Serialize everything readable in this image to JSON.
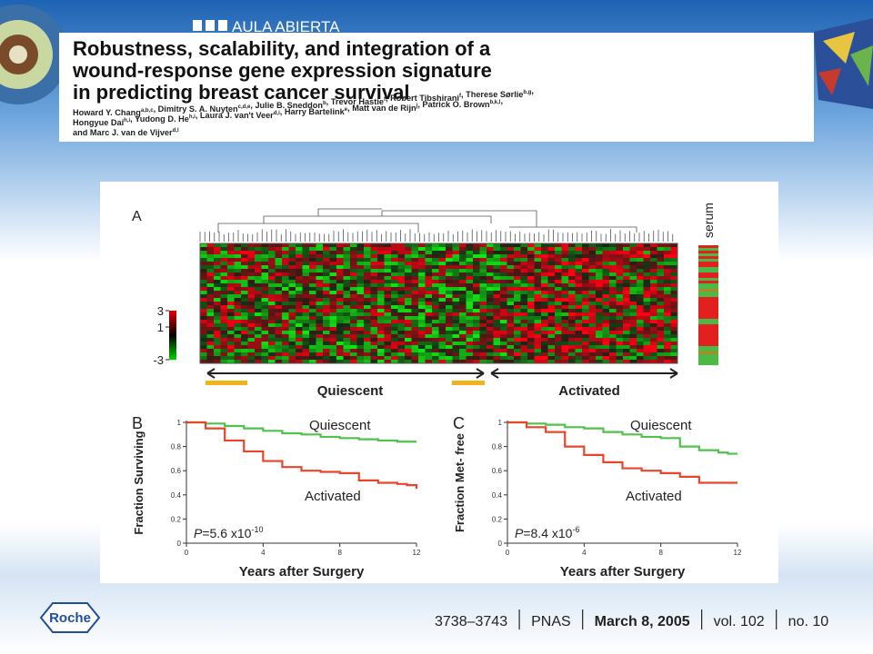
{
  "banner": {
    "text": "AULA ABIERTA",
    "logo": "Roche"
  },
  "paper": {
    "title_lines": [
      "Robustness, scalability, and integration of a",
      "wound-response gene expression signature",
      "in predicting breast cancer survival"
    ],
    "author_lines": [
      [
        {
          "name": "Howard Y. Chang",
          "sup": "a,b,c"
        },
        {
          "name": ", Dimitry S. A. Nuyten",
          "sup": "c,d,e"
        },
        {
          "name": ", Julie B. Sneddon",
          "sup": "b"
        },
        {
          "name": ", Trevor Hastie",
          "sup": "f"
        },
        {
          "name": ", Robert Tibshirani",
          "sup": "f"
        },
        {
          "name": ", Therese Sørlie",
          "sup": "b,g"
        },
        {
          "name": ",",
          "sup": ""
        }
      ],
      [
        {
          "name": "Hongyue Dai",
          "sup": "h,i"
        },
        {
          "name": ", Yudong D. He",
          "sup": "h,i"
        },
        {
          "name": ", Laura J. van't Veer",
          "sup": "d,i"
        },
        {
          "name": ", Harry Bartelink",
          "sup": "e"
        },
        {
          "name": ", Matt van de Rijn",
          "sup": "j"
        },
        {
          "name": ", Patrick O. Brown",
          "sup": "b,k,l"
        },
        {
          "name": ",",
          "sup": ""
        }
      ],
      [
        {
          "name": "and Marc J. van de Vijver",
          "sup": "d,l"
        }
      ]
    ]
  },
  "figure": {
    "panel_a": {
      "label": "A",
      "side_label": "serum",
      "colorbar_lim": [
        -3,
        3
      ],
      "colorbar_ticks": [
        3,
        1,
        -3
      ],
      "groups": [
        "Quiescent",
        "Activated"
      ]
    },
    "panels": [
      {
        "label": "B",
        "ylabel": "Fraction Surviving",
        "xlabel": "Years after Surgery",
        "p_value": {
          "symbol": "P",
          "text": "=5.6 x10",
          "exponent": "-10"
        },
        "xlim": [
          0,
          12
        ],
        "ylim": [
          0,
          1
        ],
        "xticks": [
          0,
          4,
          8,
          12
        ],
        "yticks": [
          0,
          0.2,
          0.4,
          0.6,
          0.8,
          1
        ],
        "x": [
          0,
          1,
          2,
          3,
          4,
          5,
          6,
          7,
          8,
          9,
          10,
          11,
          11.5,
          12
        ],
        "series": [
          {
            "name": "Quiescent",
            "color": "#4fc24a",
            "values": [
              1,
              0.99,
              0.97,
              0.95,
              0.93,
              0.91,
              0.9,
              0.88,
              0.87,
              0.86,
              0.85,
              0.84,
              0.84,
              0.84
            ]
          },
          {
            "name": "Activated",
            "color": "#e8452a",
            "values": [
              1,
              0.95,
              0.85,
              0.76,
              0.68,
              0.63,
              0.6,
              0.59,
              0.58,
              0.52,
              0.5,
              0.49,
              0.48,
              0.45
            ]
          }
        ]
      },
      {
        "label": "C",
        "ylabel": "Fraction Met- free",
        "xlabel": "Years after Surgery",
        "p_value": {
          "symbol": "P",
          "text": "=8.4 x10",
          "exponent": "-6"
        },
        "xlim": [
          0,
          12
        ],
        "ylim": [
          0,
          1
        ],
        "xticks": [
          0,
          4,
          8,
          12
        ],
        "yticks": [
          0,
          0.2,
          0.4,
          0.6,
          0.8,
          1
        ],
        "x": [
          0,
          1,
          2,
          3,
          4,
          5,
          6,
          7,
          8,
          9,
          10,
          11,
          11.5,
          12
        ],
        "series": [
          {
            "name": "Quiescent",
            "color": "#4fc24a",
            "values": [
              1,
              0.99,
              0.98,
              0.96,
              0.95,
              0.92,
              0.9,
              0.88,
              0.87,
              0.8,
              0.77,
              0.75,
              0.74,
              0.74
            ]
          },
          {
            "name": "Activated",
            "color": "#e8452a",
            "values": [
              1,
              0.96,
              0.92,
              0.8,
              0.73,
              0.67,
              0.62,
              0.6,
              0.58,
              0.55,
              0.5,
              0.5,
              0.5,
              0.5
            ]
          }
        ]
      }
    ]
  },
  "footer": {
    "items": [
      "3738–3743",
      "PNAS",
      "March 8, 2005",
      "vol. 102",
      "no. 10"
    ]
  }
}
